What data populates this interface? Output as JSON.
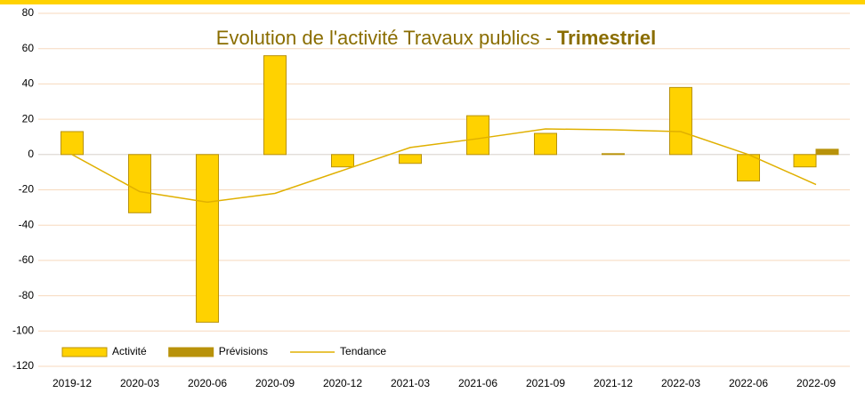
{
  "chart_data": {
    "type": "bar",
    "title": {
      "text": "Evolution de l'activité Travaux publics -",
      "emphasis": "Trimestriel"
    },
    "categories": [
      "2019-12",
      "2020-03",
      "2020-06",
      "2020-09",
      "2020-12",
      "2021-03",
      "2021-06",
      "2021-09",
      "2021-12",
      "2022-03",
      "2022-06",
      "2022-09"
    ],
    "series": [
      {
        "name": "Activité",
        "type": "bar",
        "color": "#ffd200",
        "values": [
          13,
          -33,
          -95,
          56,
          -7,
          -5,
          22,
          12,
          0.5,
          38,
          -15,
          -7
        ]
      },
      {
        "name": "Prévisions",
        "type": "bar",
        "color": "#b8920a",
        "values": [
          null,
          null,
          null,
          null,
          null,
          null,
          null,
          null,
          null,
          null,
          null,
          3
        ]
      },
      {
        "name": "Tendance",
        "type": "line",
        "color": "#e0b000",
        "values": [
          0,
          -21,
          -27,
          -22,
          -9,
          4,
          9,
          14.5,
          14,
          13,
          0,
          -17
        ]
      }
    ],
    "ylim": [
      -120,
      80
    ],
    "yticks": [
      -120,
      -100,
      -80,
      -60,
      -40,
      -20,
      0,
      20,
      40,
      60,
      80
    ],
    "grid": true,
    "legend": "bottom-left"
  }
}
